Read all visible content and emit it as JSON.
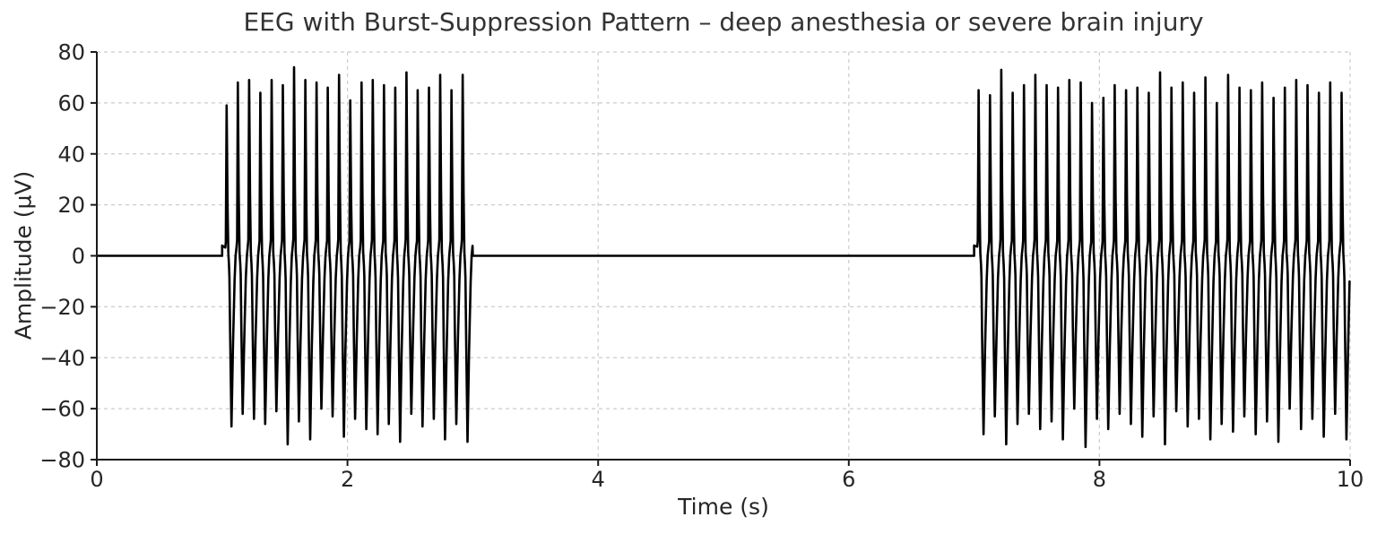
{
  "chart_data": {
    "type": "line",
    "title": "EEG with Burst-Suppression Pattern – deep anesthesia or severe brain injury",
    "xlabel": "Time (s)",
    "ylabel": "Amplitude (µV)",
    "xlim": [
      0,
      10
    ],
    "ylim": [
      -80,
      80
    ],
    "xticks": [
      0,
      2,
      4,
      6,
      8,
      10
    ],
    "yticks": [
      -80,
      -60,
      -40,
      -20,
      0,
      20,
      40,
      60,
      80
    ],
    "grid": true,
    "grid_style": "dashed",
    "grid_color": "#cccccc",
    "line_color": "#000000",
    "axis_color": "#1a1a1a",
    "legend": "none",
    "suppression_value_uv": 0,
    "suppression_intervals_s": [
      [
        0,
        1
      ],
      [
        3,
        7
      ]
    ],
    "bursts": [
      {
        "start_s": 1,
        "end_s": 3,
        "freq_hz": 11.15,
        "peak_amplitudes_uv": [
          59,
          68,
          69,
          64,
          69,
          67,
          74,
          69,
          68,
          66,
          71,
          61,
          68,
          69,
          67,
          66,
          72,
          65,
          66,
          71,
          65,
          71
        ],
        "trough_amplitudes_uv": [
          67,
          62,
          64,
          66,
          61,
          74,
          65,
          72,
          60,
          63,
          71,
          64,
          68,
          70,
          66,
          73,
          62,
          67,
          64,
          72,
          66,
          73
        ]
      },
      {
        "start_s": 7,
        "end_s": 10,
        "freq_hz": 11.05,
        "peak_amplitudes_uv": [
          65,
          63,
          73,
          64,
          67,
          71,
          67,
          66,
          69,
          68,
          60,
          62,
          67,
          65,
          66,
          64,
          72,
          66,
          68,
          64,
          70,
          60,
          71,
          66,
          65,
          68,
          62,
          66,
          69,
          67,
          64,
          68,
          64
        ],
        "trough_amplitudes_uv": [
          70,
          63,
          74,
          66,
          62,
          68,
          65,
          72,
          60,
          75,
          64,
          68,
          62,
          66,
          71,
          63,
          74,
          61,
          67,
          64,
          72,
          66,
          69,
          63,
          70,
          65,
          73,
          60,
          68,
          64,
          71,
          62,
          72
        ]
      }
    ]
  }
}
